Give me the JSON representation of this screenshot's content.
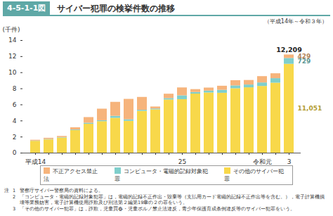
{
  "chart_data": {
    "type": "bar",
    "figure_number": "4-5-1-1図",
    "title": "サイバー犯罪の検挙件数の推移",
    "subtitle": "（平成14年～令和３年）",
    "y_label": "(千件)",
    "categories": [
      "平成14",
      null,
      null,
      null,
      null,
      null,
      null,
      null,
      null,
      null,
      null,
      "25",
      null,
      null,
      null,
      null,
      null,
      "令和元",
      null,
      "3"
    ],
    "stacked": true,
    "legend": "bottom",
    "ylim": [
      0,
      14
    ],
    "yticks": [
      0,
      2,
      4,
      6,
      8,
      10,
      12,
      14
    ],
    "series": [
      {
        "name": "不正アクセス禁止法",
        "color": "#f6b47c",
        "values": [
          0.105,
          0.145,
          0.142,
          0.277,
          0.703,
          1.442,
          1.74,
          2.534,
          1.601,
          0.248,
          0.543,
          0.98,
          0.364,
          0.373,
          0.502,
          0.648,
          0.564,
          0.785,
          0.609,
          0.429
        ],
        "value_labels": [
          null,
          null,
          null,
          null,
          null,
          null,
          null,
          null,
          null,
          null,
          null,
          null,
          null,
          null,
          null,
          null,
          null,
          null,
          null,
          "429"
        ]
      },
      {
        "name": "コンピュータ・電磁的記録対象犯罪",
        "color": "#7fcfcc",
        "values": [
          0.03,
          0.055,
          0.055,
          0.073,
          0.129,
          0.113,
          0.247,
          0.195,
          0.133,
          0.105,
          0.178,
          0.478,
          0.192,
          0.24,
          0.374,
          0.355,
          0.349,
          0.436,
          0.563,
          0.729
        ],
        "value_labels": [
          null,
          null,
          null,
          null,
          null,
          null,
          null,
          null,
          null,
          null,
          null,
          null,
          null,
          null,
          null,
          null,
          null,
          null,
          null,
          "729"
        ]
      },
      {
        "name": "その他のサイバー犯罪",
        "color": "#f8d84a",
        "values": [
          1.471,
          1.649,
          1.884,
          2.811,
          3.593,
          3.918,
          4.334,
          3.961,
          5.199,
          5.388,
          6.613,
          6.655,
          7.349,
          7.483,
          7.448,
          8.011,
          8.127,
          8.298,
          8.703,
          11.051
        ],
        "value_labels": [
          null,
          null,
          null,
          null,
          null,
          null,
          null,
          null,
          null,
          null,
          null,
          null,
          null,
          null,
          null,
          null,
          null,
          null,
          null,
          "11,051"
        ]
      }
    ],
    "total": {
      "category": "3",
      "value": 12.209,
      "label": "12,209"
    },
    "notes": {
      "label": "注",
      "items": [
        {
          "number": "1",
          "text": "警察庁サイバー警察局の資料による。"
        },
        {
          "number": "2",
          "text": "「コンピュータ・電磁的記録対象犯罪」は，電磁的記録不正作出・毀棄等（支払用カード電磁的記録不正作出等を含む。），電子計算機損壊等業務妨害，電子計算機使用詐欺及び刑法第２編第19章の２の罪をいう。"
        },
        {
          "number": "3",
          "text": "「その他のサイバー犯罪」は，詐欺，児童買春・児童ポルノ禁止法違反，青少年保護育成条例違反等のサイバー犯罪をいう。"
        }
      ]
    }
  }
}
